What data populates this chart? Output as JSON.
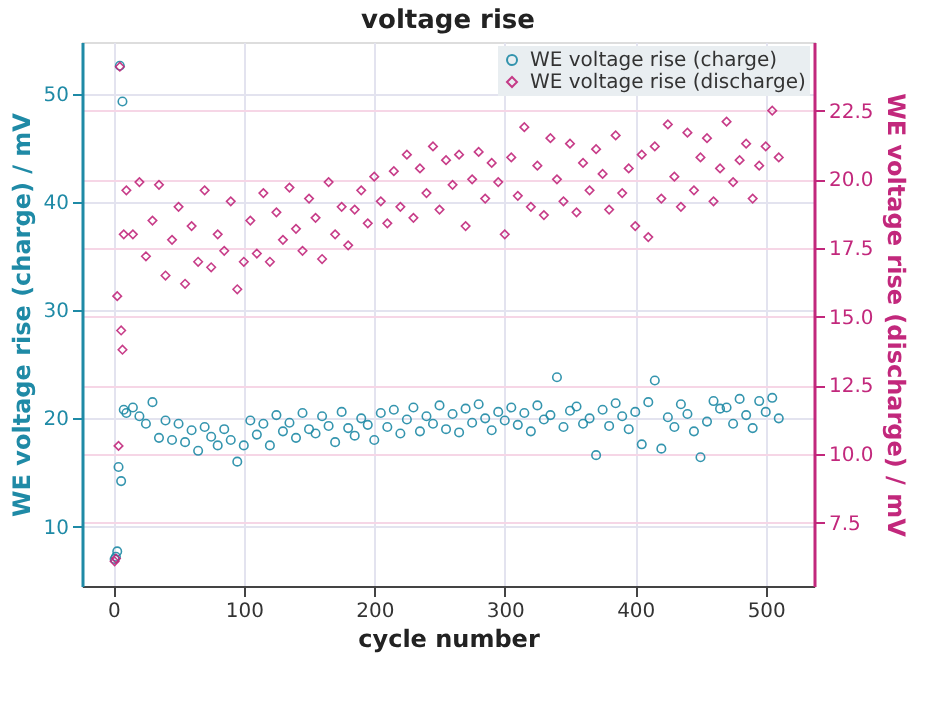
{
  "chart_data": {
    "type": "scatter",
    "title": "voltage rise",
    "xlabel": "cycle number",
    "ylabel": "WE voltage rise (charge) / mV",
    "y2label": "WE voltage rise (discharge) / mV",
    "xlim": [
      -24,
      537
    ],
    "xticks": [
      0,
      100,
      200,
      300,
      400,
      500
    ],
    "ylim": [
      4.5,
      54.8
    ],
    "yticks": [
      10,
      20,
      30,
      40,
      50
    ],
    "y2lim": [
      5.2,
      25.0
    ],
    "y2ticks": [
      7.5,
      {
        "value": 10,
        "label": "10.0"
      },
      12.5,
      {
        "value": 15,
        "label": "15.0"
      },
      17.5,
      {
        "value": 20,
        "label": "20.0"
      },
      22.5
    ],
    "grid": true,
    "legend": "top right",
    "series": [
      {
        "name": "WE voltage rise (charge)",
        "color": "#1f8aa6",
        "marker": "circle",
        "axis": "y",
        "x": [
          1,
          2,
          3,
          4,
          5,
          6,
          7,
          8,
          10,
          15,
          20,
          25,
          30,
          35,
          40,
          45,
          50,
          55,
          60,
          65,
          70,
          75,
          80,
          85,
          90,
          95,
          100,
          105,
          110,
          115,
          120,
          125,
          130,
          135,
          140,
          145,
          150,
          155,
          160,
          165,
          170,
          175,
          180,
          185,
          190,
          195,
          200,
          205,
          210,
          215,
          220,
          225,
          230,
          235,
          240,
          245,
          250,
          255,
          260,
          265,
          270,
          275,
          280,
          285,
          290,
          295,
          300,
          305,
          310,
          315,
          320,
          325,
          330,
          335,
          340,
          345,
          350,
          355,
          360,
          365,
          370,
          375,
          380,
          385,
          390,
          395,
          400,
          405,
          410,
          415,
          420,
          425,
          430,
          435,
          440,
          445,
          450,
          455,
          460,
          465,
          470,
          475,
          480,
          485,
          490,
          495,
          500,
          505,
          510
        ],
        "values": [
          7.0,
          7.2,
          7.7,
          15.5,
          52.6,
          14.2,
          49.3,
          20.8,
          20.5,
          21.0,
          20.2,
          19.5,
          21.5,
          18.2,
          19.8,
          18.0,
          19.5,
          17.8,
          18.9,
          17.0,
          19.2,
          18.3,
          17.5,
          19.0,
          18.0,
          16.0,
          17.5,
          19.8,
          18.5,
          19.5,
          17.5,
          20.3,
          18.8,
          19.6,
          18.2,
          20.5,
          19.0,
          18.6,
          20.2,
          19.3,
          17.8,
          20.6,
          19.1,
          18.4,
          20.0,
          19.4,
          18.0,
          20.5,
          19.2,
          20.8,
          18.6,
          19.9,
          21.0,
          18.8,
          20.2,
          19.5,
          21.2,
          19.0,
          20.4,
          18.7,
          20.9,
          19.6,
          21.3,
          20.0,
          18.9,
          20.6,
          19.8,
          21.0,
          19.4,
          20.5,
          18.8,
          21.2,
          19.9,
          20.3,
          23.8,
          19.2,
          20.7,
          21.1,
          19.5,
          20.0,
          16.6,
          20.8,
          19.3,
          21.4,
          20.2,
          19.0,
          20.6,
          17.6,
          21.5,
          23.5,
          17.2,
          20.1,
          19.2,
          21.3,
          20.4,
          18.8,
          16.4,
          19.7,
          21.6,
          20.9,
          21.0,
          19.5,
          21.8,
          20.3,
          19.1,
          21.6,
          20.6,
          21.9,
          20.0
        ]
      },
      {
        "name": "WE voltage rise (discharge)",
        "color": "#c2287c",
        "marker": "diamond",
        "axis": "y2",
        "x": [
          1,
          2,
          3,
          4,
          5,
          6,
          7,
          8,
          10,
          15,
          20,
          25,
          30,
          35,
          40,
          45,
          50,
          55,
          60,
          65,
          70,
          75,
          80,
          85,
          90,
          95,
          100,
          105,
          110,
          115,
          120,
          125,
          130,
          135,
          140,
          145,
          150,
          155,
          160,
          165,
          170,
          175,
          180,
          185,
          190,
          195,
          200,
          205,
          210,
          215,
          220,
          225,
          230,
          235,
          240,
          245,
          250,
          255,
          260,
          265,
          270,
          275,
          280,
          285,
          290,
          295,
          300,
          305,
          310,
          315,
          320,
          325,
          330,
          335,
          340,
          345,
          350,
          355,
          360,
          365,
          370,
          375,
          380,
          385,
          390,
          395,
          400,
          405,
          410,
          415,
          420,
          425,
          430,
          435,
          440,
          445,
          450,
          455,
          460,
          465,
          470,
          475,
          480,
          485,
          490,
          495,
          500,
          505,
          510
        ],
        "values": [
          6.1,
          6.2,
          15.75,
          10.3,
          24.1,
          14.5,
          13.8,
          18.0,
          19.6,
          18.0,
          19.9,
          17.2,
          18.5,
          19.8,
          16.5,
          17.8,
          19.0,
          16.2,
          18.3,
          17.0,
          19.6,
          16.8,
          18.0,
          17.4,
          19.2,
          16.0,
          17.0,
          18.5,
          17.3,
          19.5,
          17.0,
          18.8,
          17.8,
          19.7,
          18.2,
          17.4,
          19.3,
          18.6,
          17.1,
          19.9,
          18.0,
          19.0,
          17.6,
          18.9,
          19.6,
          18.4,
          20.1,
          19.2,
          18.4,
          20.3,
          19.0,
          20.9,
          18.6,
          20.4,
          19.5,
          21.2,
          18.9,
          20.7,
          19.8,
          20.9,
          18.3,
          20.0,
          21.0,
          19.3,
          20.6,
          19.9,
          18.0,
          20.8,
          19.4,
          21.9,
          19.0,
          20.5,
          18.7,
          21.5,
          20.0,
          19.2,
          21.3,
          18.8,
          20.6,
          19.6,
          21.1,
          20.2,
          18.9,
          21.6,
          19.5,
          20.4,
          18.3,
          20.9,
          17.9,
          21.2,
          19.3,
          22.0,
          20.1,
          19.0,
          21.7,
          19.6,
          20.8,
          21.5,
          19.2,
          20.4,
          22.1,
          19.9,
          20.7,
          21.3,
          19.3,
          20.5,
          21.2,
          22.5,
          20.8
        ]
      }
    ]
  }
}
